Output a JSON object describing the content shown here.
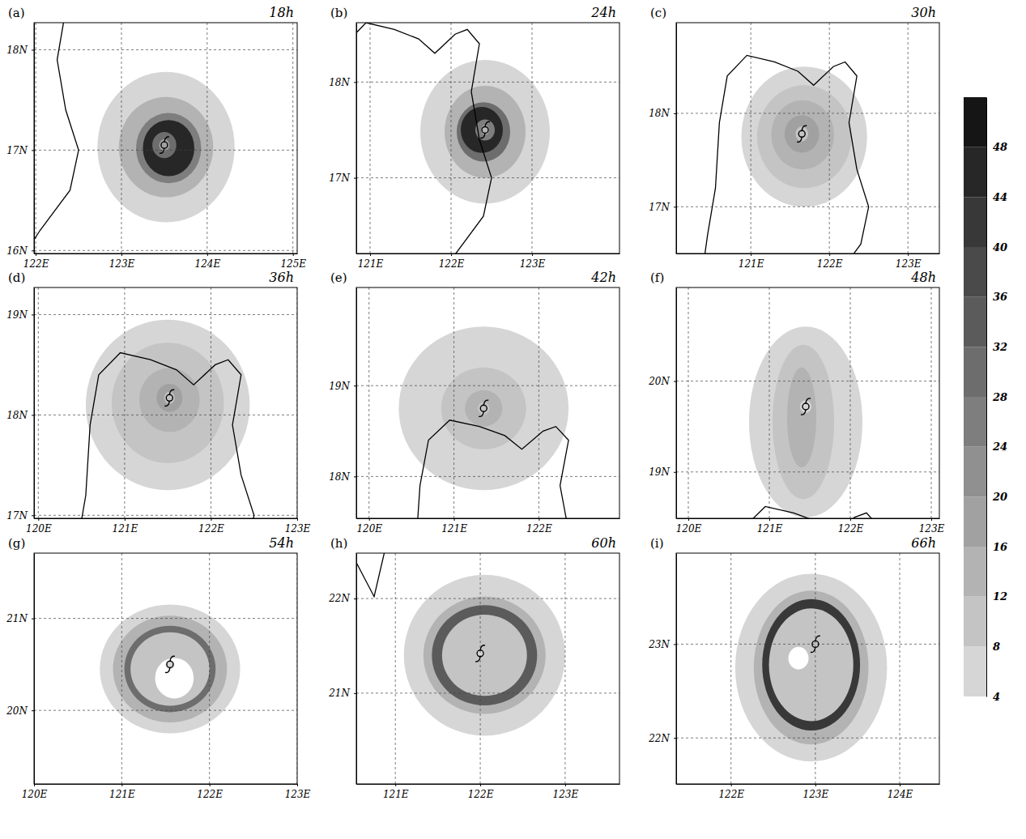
{
  "chart_data": {
    "type": "contour",
    "coastline": {
      "x": [
        120.3,
        120.45,
        120.55,
        120.6,
        120.7,
        120.95,
        121.3,
        121.6,
        121.8,
        122.05,
        122.2,
        122.35,
        122.25,
        122.35,
        122.5,
        122.4,
        122.05,
        121.75,
        null,
        120.5,
        120.75,
        120.9
      ],
      "y": [
        15.8,
        16.7,
        17.2,
        17.9,
        18.4,
        18.62,
        18.55,
        18.45,
        18.3,
        18.5,
        18.55,
        18.4,
        17.9,
        17.4,
        17.0,
        16.6,
        16.2,
        15.8,
        null,
        22.45,
        22.02,
        22.6
      ]
    },
    "colorbar": {
      "range": [
        4,
        52
      ],
      "ticks": [
        4,
        8,
        12,
        16,
        20,
        24,
        28,
        32,
        36,
        40,
        44,
        48
      ]
    },
    "panels": [
      {
        "label": "(a)",
        "title": "18h",
        "xlim": [
          121.98,
          125.05
        ],
        "ylim": [
          15.97,
          18.27
        ],
        "grid": true,
        "xticks": [
          {
            "value": 122,
            "label": "122E"
          },
          {
            "value": 123,
            "label": "123E"
          },
          {
            "value": 124,
            "label": "124E"
          },
          {
            "value": 125,
            "label": "125E"
          }
        ],
        "yticks": [
          {
            "value": 16,
            "label": "16N"
          },
          {
            "value": 17,
            "label": "17N"
          },
          {
            "value": 18,
            "label": "18N"
          }
        ],
        "center": {
          "x": 123.5,
          "y": 17.05
        },
        "field": [
          {
            "x": 123.52,
            "y": 17.03,
            "rx": 0.8,
            "ry": 0.75,
            "value": 4
          },
          {
            "x": 123.52,
            "y": 17.03,
            "rx": 0.55,
            "ry": 0.5,
            "value": 12
          },
          {
            "x": 123.55,
            "y": 17.02,
            "rx": 0.38,
            "ry": 0.35,
            "value": 24
          },
          {
            "x": 123.55,
            "y": 17.02,
            "rx": 0.3,
            "ry": 0.28,
            "value": 44
          },
          {
            "x": 123.5,
            "y": 17.05,
            "rx": 0.14,
            "ry": 0.13,
            "value": 28
          },
          {
            "x": 123.5,
            "y": 17.05,
            "rx": 0.06,
            "ry": 0.06,
            "value": 16
          }
        ]
      },
      {
        "label": "(b)",
        "title": "24h",
        "xlim": [
          120.83,
          124.08
        ],
        "ylim": [
          16.21,
          18.62
        ],
        "grid": true,
        "xticks": [
          {
            "value": 121,
            "label": "121E"
          },
          {
            "value": 122,
            "label": "122E"
          },
          {
            "value": 123,
            "label": "123E"
          }
        ],
        "yticks": [
          {
            "value": 17,
            "label": "17N"
          },
          {
            "value": 18,
            "label": "18N"
          }
        ],
        "center": {
          "x": 122.42,
          "y": 17.5
        },
        "field": [
          {
            "x": 122.42,
            "y": 17.48,
            "rx": 0.8,
            "ry": 0.75,
            "value": 4
          },
          {
            "x": 122.42,
            "y": 17.48,
            "rx": 0.5,
            "ry": 0.48,
            "value": 12
          },
          {
            "x": 122.4,
            "y": 17.48,
            "rx": 0.33,
            "ry": 0.31,
            "value": 28
          },
          {
            "x": 122.38,
            "y": 17.5,
            "rx": 0.26,
            "ry": 0.24,
            "value": 44
          },
          {
            "x": 122.42,
            "y": 17.5,
            "rx": 0.12,
            "ry": 0.11,
            "value": 24
          },
          {
            "x": 122.42,
            "y": 17.5,
            "rx": 0.05,
            "ry": 0.05,
            "value": 12
          }
        ]
      },
      {
        "label": "(c)",
        "title": "30h",
        "xlim": [
          120.05,
          123.4
        ],
        "ylim": [
          16.5,
          18.97
        ],
        "grid": true,
        "xticks": [
          {
            "value": 121,
            "label": "121E"
          },
          {
            "value": 122,
            "label": "122E"
          },
          {
            "value": 123,
            "label": "123E"
          }
        ],
        "yticks": [
          {
            "value": 17,
            "label": "17N"
          },
          {
            "value": 18,
            "label": "18N"
          }
        ],
        "center": {
          "x": 121.65,
          "y": 17.78
        },
        "field": [
          {
            "x": 121.68,
            "y": 17.75,
            "rx": 0.8,
            "ry": 0.75,
            "value": 4
          },
          {
            "x": 121.68,
            "y": 17.75,
            "rx": 0.6,
            "ry": 0.55,
            "value": 8
          },
          {
            "x": 121.66,
            "y": 17.77,
            "rx": 0.4,
            "ry": 0.37,
            "value": 12
          },
          {
            "x": 121.65,
            "y": 17.78,
            "rx": 0.22,
            "ry": 0.2,
            "value": 16
          },
          {
            "x": 121.65,
            "y": 17.78,
            "rx": 0.08,
            "ry": 0.08,
            "value": 8
          }
        ]
      },
      {
        "label": "(d)",
        "title": "36h",
        "xlim": [
          119.95,
          123.0
        ],
        "ylim": [
          16.97,
          19.27
        ],
        "grid": true,
        "xticks": [
          {
            "value": 120,
            "label": "120E"
          },
          {
            "value": 121,
            "label": "121E"
          },
          {
            "value": 122,
            "label": "122E"
          },
          {
            "value": 123,
            "label": "123E"
          }
        ],
        "yticks": [
          {
            "value": 17,
            "label": "17N"
          },
          {
            "value": 18,
            "label": "18N"
          },
          {
            "value": 19,
            "label": "19N"
          }
        ],
        "center": {
          "x": 121.52,
          "y": 18.17
        },
        "field": [
          {
            "x": 121.5,
            "y": 18.1,
            "rx": 0.95,
            "ry": 0.85,
            "value": 4
          },
          {
            "x": 121.5,
            "y": 18.12,
            "rx": 0.65,
            "ry": 0.6,
            "value": 8
          },
          {
            "x": 121.52,
            "y": 18.15,
            "rx": 0.35,
            "ry": 0.32,
            "value": 12
          },
          {
            "x": 121.52,
            "y": 18.17,
            "rx": 0.15,
            "ry": 0.14,
            "value": 16
          },
          {
            "x": 121.52,
            "y": 18.17,
            "rx": 0.06,
            "ry": 0.06,
            "value": 8
          }
        ]
      },
      {
        "label": "(e)",
        "title": "42h",
        "xlim": [
          119.85,
          122.95
        ],
        "ylim": [
          17.54,
          20.08
        ],
        "grid": true,
        "xticks": [
          {
            "value": 120,
            "label": "120E"
          },
          {
            "value": 121,
            "label": "121E"
          },
          {
            "value": 122,
            "label": "122E"
          }
        ],
        "yticks": [
          {
            "value": 18,
            "label": "18N"
          },
          {
            "value": 19,
            "label": "19N"
          }
        ],
        "center": {
          "x": 121.35,
          "y": 18.75
        },
        "field": [
          {
            "x": 121.35,
            "y": 18.75,
            "rx": 1.0,
            "ry": 0.9,
            "value": 4
          },
          {
            "x": 121.35,
            "y": 18.75,
            "rx": 0.5,
            "ry": 0.45,
            "value": 8
          },
          {
            "x": 121.35,
            "y": 18.75,
            "rx": 0.22,
            "ry": 0.2,
            "value": 12
          },
          {
            "x": 121.35,
            "y": 18.75,
            "rx": 0.07,
            "ry": 0.07,
            "value": 8
          }
        ]
      },
      {
        "label": "(f)",
        "title": "48h",
        "xlim": [
          119.85,
          123.1
        ],
        "ylim": [
          18.49,
          21.03
        ],
        "grid": true,
        "xticks": [
          {
            "value": 120,
            "label": "120E"
          },
          {
            "value": 121,
            "label": "121E"
          },
          {
            "value": 122,
            "label": "122E"
          },
          {
            "value": 123,
            "label": "123E"
          }
        ],
        "yticks": [
          {
            "value": 19,
            "label": "19N"
          },
          {
            "value": 20,
            "label": "20N"
          }
        ],
        "center": {
          "x": 121.45,
          "y": 19.72
        },
        "field": [
          {
            "x": 121.45,
            "y": 19.55,
            "rx": 0.7,
            "ry": 1.05,
            "value": 4
          },
          {
            "x": 121.42,
            "y": 19.55,
            "rx": 0.38,
            "ry": 0.85,
            "value": 8
          },
          {
            "x": 121.4,
            "y": 19.6,
            "rx": 0.18,
            "ry": 0.55,
            "value": 12
          },
          {
            "x": 121.45,
            "y": 19.72,
            "rx": 0.07,
            "ry": 0.07,
            "value": 4
          }
        ]
      },
      {
        "label": "(g)",
        "title": "54h",
        "xlim": [
          120.0,
          123.0
        ],
        "ylim": [
          19.2,
          21.71
        ],
        "grid": true,
        "xticks": [
          {
            "value": 120,
            "label": "120E"
          },
          {
            "value": 121,
            "label": "121E"
          },
          {
            "value": 122,
            "label": "122E"
          },
          {
            "value": 123,
            "label": "123E"
          }
        ],
        "yticks": [
          {
            "value": 20,
            "label": "20N"
          },
          {
            "value": 21,
            "label": "21N"
          }
        ],
        "center": {
          "x": 121.55,
          "y": 20.5
        },
        "field": [
          {
            "x": 121.55,
            "y": 20.45,
            "rx": 0.8,
            "ry": 0.7,
            "value": 4
          },
          {
            "x": 121.55,
            "y": 20.45,
            "rx": 0.65,
            "ry": 0.58,
            "value": 12
          },
          {
            "x": 121.55,
            "y": 20.45,
            "rx": 0.52,
            "ry": 0.47,
            "value": 28
          },
          {
            "x": 121.55,
            "y": 20.45,
            "rx": 0.45,
            "ry": 0.4,
            "value": 8
          },
          {
            "x": 121.6,
            "y": 20.35,
            "rx": 0.22,
            "ry": 0.22,
            "value": 0
          },
          {
            "x": 121.55,
            "y": 20.5,
            "rx": 0.05,
            "ry": 0.05,
            "value": 4
          }
        ]
      },
      {
        "label": "(h)",
        "title": "60h",
        "xlim": [
          120.54,
          123.64
        ],
        "ylim": [
          20.04,
          22.48
        ],
        "grid": true,
        "xticks": [
          {
            "value": 121,
            "label": "121E"
          },
          {
            "value": 122,
            "label": "122E"
          },
          {
            "value": 123,
            "label": "123E"
          }
        ],
        "yticks": [
          {
            "value": 21,
            "label": "21N"
          },
          {
            "value": 22,
            "label": "22N"
          }
        ],
        "center": {
          "x": 122.0,
          "y": 21.42
        },
        "field": [
          {
            "x": 122.05,
            "y": 21.4,
            "rx": 0.95,
            "ry": 0.85,
            "value": 4
          },
          {
            "x": 122.05,
            "y": 21.4,
            "rx": 0.72,
            "ry": 0.62,
            "value": 12
          },
          {
            "x": 122.05,
            "y": 21.4,
            "rx": 0.62,
            "ry": 0.53,
            "value": 32
          },
          {
            "x": 122.05,
            "y": 21.4,
            "rx": 0.5,
            "ry": 0.43,
            "value": 8
          },
          {
            "x": 122.0,
            "y": 21.42,
            "rx": 0.05,
            "ry": 0.05,
            "value": 4
          }
        ]
      },
      {
        "label": "(i)",
        "title": "66h",
        "xlim": [
          121.35,
          124.47
        ],
        "ylim": [
          21.51,
          23.97
        ],
        "grid": true,
        "xticks": [
          {
            "value": 122,
            "label": "122E"
          },
          {
            "value": 123,
            "label": "123E"
          },
          {
            "value": 124,
            "label": "124E"
          }
        ],
        "yticks": [
          {
            "value": 22,
            "label": "22N"
          },
          {
            "value": 23,
            "label": "23N"
          }
        ],
        "center": {
          "x": 123.0,
          "y": 23.0
        },
        "field": [
          {
            "x": 122.95,
            "y": 22.75,
            "rx": 0.9,
            "ry": 1.0,
            "value": 4
          },
          {
            "x": 122.95,
            "y": 22.75,
            "rx": 0.68,
            "ry": 0.82,
            "value": 12
          },
          {
            "x": 122.95,
            "y": 22.78,
            "rx": 0.58,
            "ry": 0.7,
            "value": 40
          },
          {
            "x": 122.95,
            "y": 22.78,
            "rx": 0.5,
            "ry": 0.6,
            "value": 8
          },
          {
            "x": 122.8,
            "y": 22.85,
            "rx": 0.12,
            "ry": 0.12,
            "value": 0
          }
        ]
      }
    ]
  }
}
